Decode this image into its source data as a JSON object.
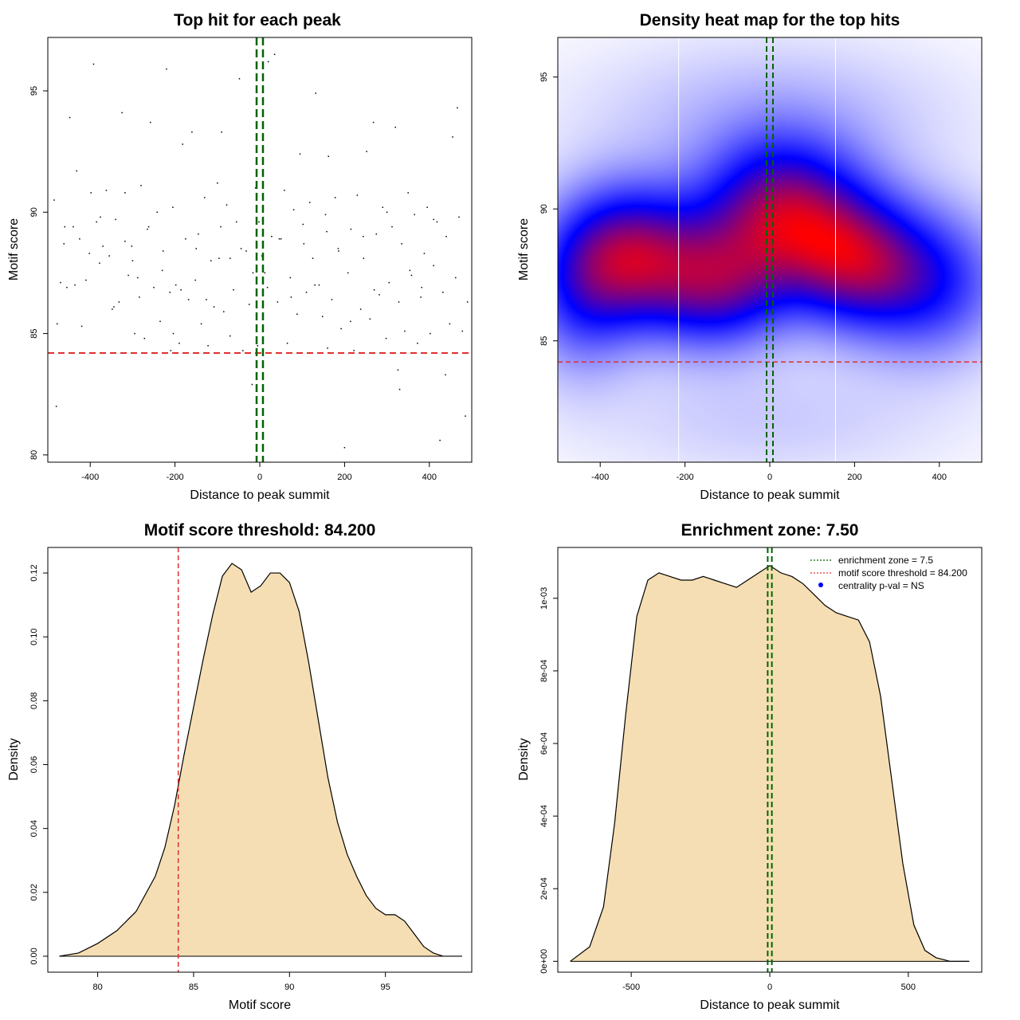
{
  "chart_data": [
    {
      "id": "p1",
      "type": "scatter",
      "title": "Top hit for each peak",
      "xlabel": "Distance to peak summit",
      "ylabel": "Motif score",
      "xlim": [
        -500,
        500
      ],
      "ylim": [
        79.7,
        97.2
      ],
      "xticks": [
        -400,
        -200,
        0,
        200,
        400
      ],
      "xtick_labels": [
        "-400",
        "-200",
        "0",
        "200",
        "400"
      ],
      "yticks": [
        80,
        85,
        90,
        95
      ],
      "ytick_labels": [
        "80",
        "85",
        "90",
        "95"
      ],
      "threshold": 84.2,
      "enrichment_zone": 7.5,
      "points_x": [
        -485,
        -480,
        -478,
        -470,
        -462,
        -455,
        -448,
        -440,
        -432,
        -425,
        -420,
        -410,
        -398,
        -392,
        -385,
        -378,
        -370,
        -362,
        -355,
        -348,
        -340,
        -332,
        -325,
        -318,
        -310,
        -302,
        -295,
        -288,
        -280,
        -272,
        -265,
        -258,
        -250,
        -242,
        -235,
        -228,
        -220,
        -212,
        -205,
        -198,
        -190,
        -182,
        -175,
        -168,
        -160,
        -152,
        -145,
        -138,
        -130,
        -122,
        -115,
        -108,
        -100,
        -92,
        -85,
        -78,
        -70,
        -62,
        -55,
        -48,
        -40,
        -32,
        -25,
        -18,
        -10,
        -5,
        -2,
        5,
        12,
        20,
        28,
        35,
        42,
        50,
        58,
        65,
        72,
        80,
        88,
        95,
        102,
        110,
        118,
        125,
        132,
        140,
        148,
        155,
        162,
        170,
        178,
        185,
        192,
        200,
        208,
        215,
        222,
        230,
        238,
        245,
        252,
        260,
        268,
        275,
        282,
        290,
        298,
        305,
        312,
        320,
        328,
        335,
        342,
        350,
        358,
        365,
        372,
        380,
        388,
        395,
        402,
        410,
        418,
        425,
        432,
        440,
        448,
        455,
        462,
        470,
        478,
        485,
        490,
        -460,
        -436,
        -402,
        -376,
        -344,
        -318,
        -284,
        -262,
        -230,
        -204,
        -186,
        -150,
        -126,
        -96,
        -70,
        -44,
        -16,
        18,
        46,
        74,
        104,
        130,
        158,
        186,
        214,
        244,
        270,
        300,
        326,
        354,
        382,
        410,
        438,
        466,
        -300,
        -90,
        160,
        330,
        -210,
        60
      ],
      "points_y": [
        90.5,
        82.0,
        85.4,
        87.1,
        88.7,
        86.9,
        93.9,
        89.4,
        91.7,
        88.9,
        85.3,
        87.2,
        90.8,
        96.1,
        89.6,
        87.9,
        88.6,
        90.9,
        88.2,
        86.0,
        89.7,
        86.3,
        94.1,
        90.8,
        87.4,
        88.6,
        85.0,
        87.3,
        91.1,
        84.8,
        89.3,
        93.7,
        86.9,
        90.0,
        85.5,
        88.4,
        95.9,
        86.7,
        90.2,
        87.0,
        84.6,
        92.8,
        88.9,
        86.4,
        93.3,
        87.2,
        89.1,
        85.4,
        90.6,
        84.5,
        88.0,
        86.1,
        91.2,
        89.4,
        85.9,
        90.3,
        88.1,
        86.8,
        89.6,
        95.5,
        84.3,
        88.4,
        86.2,
        82.9,
        91.0,
        84.5,
        89.6,
        88.2,
        87.5,
        96.2,
        89.0,
        96.5,
        86.3,
        88.9,
        90.9,
        84.6,
        87.3,
        90.1,
        85.8,
        92.4,
        89.5,
        86.7,
        90.4,
        88.1,
        94.9,
        87.0,
        85.7,
        89.9,
        92.3,
        86.4,
        90.6,
        88.5,
        85.2,
        80.3,
        87.5,
        89.3,
        84.3,
        90.7,
        86.0,
        88.1,
        92.5,
        85.6,
        93.7,
        89.1,
        86.6,
        90.2,
        84.8,
        87.1,
        89.4,
        93.5,
        86.3,
        88.7,
        85.1,
        90.8,
        87.4,
        89.9,
        84.6,
        86.5,
        88.3,
        90.2,
        85.0,
        87.8,
        89.6,
        80.6,
        86.7,
        89.0,
        85.4,
        93.1,
        87.3,
        89.8,
        85.1,
        81.6,
        86.3,
        89.4,
        87.0,
        88.3,
        89.8,
        86.1,
        88.8,
        86.5,
        89.4,
        87.6,
        85.0,
        86.8,
        88.5,
        86.4,
        88.1,
        84.9,
        88.5,
        87.5,
        86.9,
        88.9,
        86.5,
        88.7,
        87.0,
        89.2,
        88.4,
        85.5,
        89.0,
        86.8,
        90.0,
        83.5,
        87.6,
        86.9,
        89.7,
        83.3,
        94.3,
        88.0,
        93.3,
        84.4,
        82.7,
        84.3
      ]
    },
    {
      "id": "p2",
      "type": "heatmap",
      "title": "Density heat map for the top hits",
      "xlabel": "Distance to peak summit",
      "ylabel": "Motif score",
      "xlim": [
        -500,
        500
      ],
      "ylim": [
        80.4,
        96.5
      ],
      "xticks": [
        -400,
        -200,
        0,
        200,
        400
      ],
      "xtick_labels": [
        "-400",
        "-200",
        "0",
        "200",
        "400"
      ],
      "yticks": [
        85,
        90,
        95
      ],
      "ytick_labels": [
        "85",
        "90",
        "95"
      ],
      "threshold": 84.2,
      "enrichment_zone": 7.5,
      "vlines_white": [
        -215,
        155
      ],
      "kernels": [
        {
          "x": -330,
          "y": 88.2,
          "sx": 120,
          "sy": 1.8,
          "w": 1.0
        },
        {
          "x": 30,
          "y": 89.8,
          "sx": 130,
          "sy": 1.9,
          "w": 1.0
        },
        {
          "x": -120,
          "y": 87.0,
          "sx": 110,
          "sy": 1.6,
          "w": 0.7
        },
        {
          "x": 200,
          "y": 88.0,
          "sx": 110,
          "sy": 1.7,
          "w": 0.8
        },
        {
          "x": 380,
          "y": 87.2,
          "sx": 120,
          "sy": 1.9,
          "w": 0.55
        },
        {
          "x": -450,
          "y": 86.5,
          "sx": 90,
          "sy": 2.0,
          "w": 0.35
        },
        {
          "x": 0,
          "y": 93.5,
          "sx": 300,
          "sy": 2.0,
          "w": 0.15
        },
        {
          "x": 0,
          "y": 82.0,
          "sx": 300,
          "sy": 1.6,
          "w": 0.1
        }
      ]
    },
    {
      "id": "p3",
      "type": "area",
      "title": "Motif score threshold: 84.200",
      "xlabel": "Motif score",
      "ylabel": "Density",
      "xlim": [
        77.4,
        99.5
      ],
      "ylim": [
        -0.005,
        0.128
      ],
      "xticks": [
        80,
        85,
        90,
        95
      ],
      "xtick_labels": [
        "80",
        "85",
        "90",
        "95"
      ],
      "yticks": [
        0.0,
        0.02,
        0.04,
        0.06,
        0.08,
        0.1,
        0.12
      ],
      "ytick_labels": [
        "0.00",
        "0.02",
        "0.04",
        "0.06",
        "0.08",
        "0.10",
        "0.12"
      ],
      "threshold": 84.2,
      "x": [
        78.0,
        79.0,
        80.0,
        81.0,
        82.0,
        83.0,
        83.5,
        84.0,
        84.5,
        85.0,
        85.5,
        86.0,
        86.5,
        87.0,
        87.5,
        88.0,
        88.5,
        89.0,
        89.5,
        90.0,
        90.5,
        91.0,
        91.5,
        92.0,
        92.5,
        93.0,
        93.5,
        94.0,
        94.5,
        95.0,
        95.5,
        96.0,
        96.5,
        97.0,
        97.5,
        98.0,
        99.0
      ],
      "y": [
        0.0,
        0.001,
        0.004,
        0.008,
        0.014,
        0.025,
        0.034,
        0.047,
        0.063,
        0.078,
        0.093,
        0.107,
        0.119,
        0.123,
        0.121,
        0.114,
        0.116,
        0.12,
        0.12,
        0.117,
        0.108,
        0.092,
        0.074,
        0.056,
        0.042,
        0.032,
        0.025,
        0.019,
        0.015,
        0.013,
        0.013,
        0.011,
        0.007,
        0.003,
        0.001,
        0.0,
        0.0
      ]
    },
    {
      "id": "p4",
      "type": "area",
      "title": "Enrichment zone: 7.50",
      "xlabel": "Distance to peak summit",
      "ylabel": "Density",
      "xlim": [
        -765,
        765
      ],
      "ylim": [
        -3e-05,
        0.00114
      ],
      "xticks": [
        -500,
        0,
        500
      ],
      "xtick_labels": [
        "-500",
        "0",
        "500"
      ],
      "yticks": [
        0,
        0.0002,
        0.0004,
        0.0006,
        0.0008,
        0.001
      ],
      "ytick_labels": [
        "0e+00",
        "2e-04",
        "4e-04",
        "6e-04",
        "8e-04",
        "1e-03"
      ],
      "enrichment_zone": 7.5,
      "x": [
        -720,
        -650,
        -600,
        -560,
        -520,
        -480,
        -440,
        -400,
        -360,
        -320,
        -280,
        -240,
        -200,
        -160,
        -120,
        -80,
        -40,
        0,
        40,
        80,
        120,
        160,
        200,
        240,
        280,
        320,
        360,
        400,
        440,
        480,
        520,
        560,
        600,
        650,
        720
      ],
      "y": [
        0.0,
        4e-05,
        0.00015,
        0.00038,
        0.00068,
        0.00095,
        0.00105,
        0.00107,
        0.00106,
        0.00105,
        0.00105,
        0.00106,
        0.00105,
        0.00104,
        0.00103,
        0.00105,
        0.00107,
        0.00109,
        0.00107,
        0.00106,
        0.00104,
        0.00101,
        0.00098,
        0.00096,
        0.00095,
        0.00094,
        0.00088,
        0.00073,
        0.0005,
        0.00027,
        0.0001,
        3e-05,
        1e-05,
        0.0,
        0.0
      ],
      "legend": [
        {
          "label": "enrichment zone = 7.5",
          "style": "line",
          "color": "#006400"
        },
        {
          "label": "motif score threshold = 84.200",
          "style": "line",
          "color": "#e03030"
        },
        {
          "label": "centrality p-val = NS",
          "style": "dot",
          "color": "#0000ff"
        }
      ]
    }
  ],
  "colors": {
    "threshold": "#e03030",
    "zone": "#006400",
    "fill": "#f5deb3",
    "heat_low": "#ffffff",
    "heat_mid": "#0000ff",
    "heat_high": "#ff0000"
  }
}
